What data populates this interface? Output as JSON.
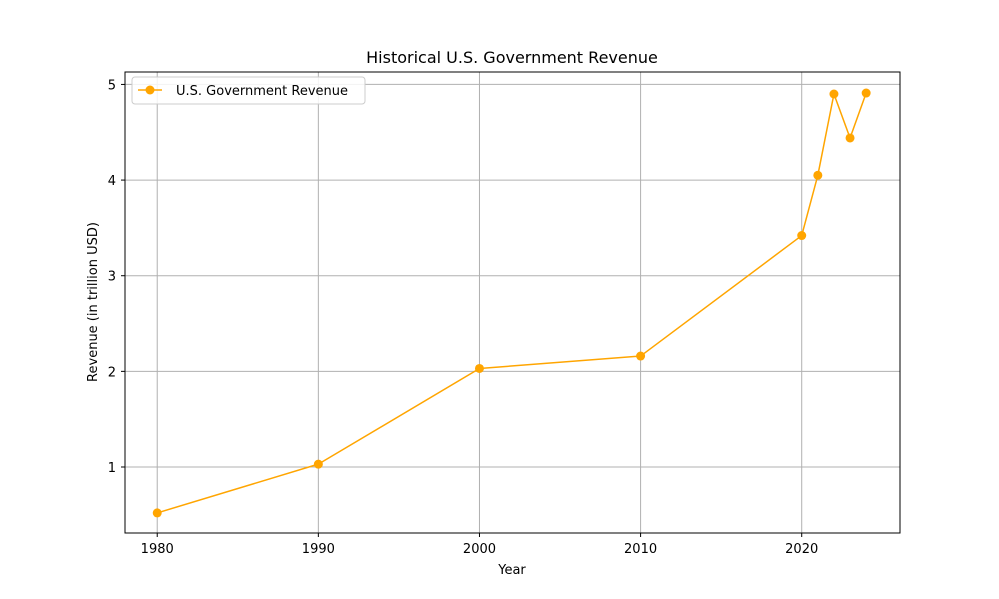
{
  "chart_data": {
    "type": "line",
    "title": "Historical U.S. Government Revenue",
    "xlabel": "Year",
    "ylabel": "Revenue (in trillion USD)",
    "x": [
      1980,
      1990,
      2000,
      2010,
      2020,
      2021,
      2022,
      2023,
      2024
    ],
    "series": [
      {
        "name": "U.S. Government Revenue",
        "values": [
          0.52,
          1.03,
          2.03,
          2.16,
          3.42,
          4.05,
          4.9,
          4.44,
          4.91
        ],
        "color": "#FFA500",
        "marker": "circle"
      }
    ],
    "xlim": [
      1978,
      2026.1
    ],
    "ylim": [
      0.31,
      5.13
    ],
    "xticks": [
      1980,
      1990,
      2000,
      2010,
      2020
    ],
    "yticks": [
      1,
      2,
      3,
      4,
      5
    ],
    "grid": true,
    "grid_color": "#b0b0b0",
    "legend_position": "top-left"
  }
}
